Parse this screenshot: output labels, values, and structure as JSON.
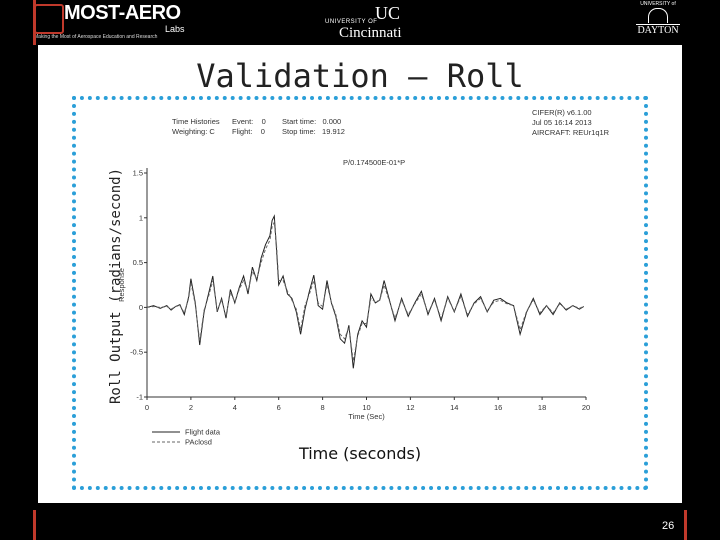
{
  "header": {
    "logo_left_name": "MOST-AERO",
    "logo_left_labs": "Labs",
    "logo_left_tagline": "Making the Most of Aerospace Education and Research",
    "logo_mid_uni": "UNIVERSITY OF",
    "logo_mid_mark": "UC",
    "logo_mid_name": "Cincinnati",
    "logo_right_uni": "UNIVERSITY of",
    "logo_right_name": "DAYTON"
  },
  "slide": {
    "title": "Validation – Roll",
    "y_label": "Roll Output (radians/second)",
    "x_label": "Time (seconds)",
    "page_number": "26"
  },
  "plot_header": {
    "l1": "Time Histories",
    "l2": "Weighting: C",
    "m1": "Event:",
    "m1v": "0",
    "m2": "Flight:",
    "m2v": "0",
    "s1": "Start time:",
    "s1v": "0.000",
    "s2": "Stop time:",
    "s2v": "19.912",
    "r1": "CIFER(R) v6.1.00",
    "r2": "Jul 05 16:14 2013",
    "r3": "AIRCRAFT: REUr1q1R",
    "subtitle": "P/0.174500E-01*P"
  },
  "colors": {
    "accent_red": "#c0392b",
    "frame_blue": "#2b9fd8"
  },
  "chart_data": {
    "type": "line",
    "ylabel": "Response",
    "xlabel": "Time (Sec)",
    "xlim": [
      0,
      20
    ],
    "ylim": [
      -1,
      1.5
    ],
    "x_ticks": [
      "0",
      "2",
      "4",
      "6",
      "8",
      "10",
      "12",
      "14",
      "16",
      "18",
      "20"
    ],
    "y_ticks": [
      "1.5",
      "1",
      "0.5",
      "0",
      "-0.5",
      "-1"
    ],
    "legend_position": "bottom-left",
    "series": [
      {
        "name": "Flight data",
        "style": "solid",
        "x": [
          0,
          0.3,
          0.6,
          0.9,
          1.1,
          1.3,
          1.5,
          1.7,
          1.9,
          2.0,
          2.2,
          2.4,
          2.6,
          2.8,
          3.0,
          3.2,
          3.4,
          3.6,
          3.8,
          4.0,
          4.2,
          4.4,
          4.6,
          4.8,
          5.0,
          5.2,
          5.4,
          5.6,
          5.7,
          5.8,
          5.9,
          6.0,
          6.2,
          6.4,
          6.6,
          6.8,
          7.0,
          7.2,
          7.4,
          7.6,
          7.8,
          8.0,
          8.2,
          8.4,
          8.6,
          8.8,
          9.0,
          9.2,
          9.4,
          9.6,
          9.8,
          10.0,
          10.2,
          10.4,
          10.6,
          10.8,
          11.0,
          11.3,
          11.6,
          11.9,
          12.2,
          12.5,
          12.8,
          13.1,
          13.4,
          13.7,
          14.0,
          14.3,
          14.6,
          14.9,
          15.2,
          15.5,
          15.8,
          16.1,
          16.4,
          16.7,
          17.0,
          17.3,
          17.6,
          17.9,
          18.2,
          18.5,
          18.8,
          19.1,
          19.4,
          19.7,
          19.9
        ],
        "y": [
          0,
          0.02,
          -0.01,
          0.02,
          -0.03,
          0.01,
          0.03,
          -0.08,
          0.12,
          0.32,
          0.05,
          -0.42,
          -0.05,
          0.15,
          0.35,
          -0.05,
          0.1,
          -0.12,
          0.2,
          0.05,
          0.22,
          0.35,
          0.15,
          0.45,
          0.3,
          0.55,
          0.7,
          0.8,
          0.97,
          1.02,
          0.65,
          0.25,
          0.35,
          0.15,
          0.1,
          -0.05,
          -0.3,
          -0.02,
          0.18,
          0.36,
          0.02,
          -0.02,
          0.3,
          0.05,
          -0.1,
          -0.35,
          -0.4,
          -0.2,
          -0.68,
          -0.3,
          -0.15,
          -0.22,
          0.15,
          0.05,
          0.08,
          0.3,
          0.12,
          -0.15,
          0.1,
          -0.1,
          0.05,
          0.18,
          -0.08,
          0.1,
          -0.15,
          0.12,
          -0.05,
          0.15,
          -0.1,
          0.05,
          0.12,
          -0.05,
          0.08,
          0.1,
          0.05,
          0.02,
          -0.3,
          -0.05,
          0.1,
          -0.08,
          0.02,
          -0.08,
          0.05,
          -0.03,
          0.02,
          -0.02,
          0.01
        ]
      },
      {
        "name": "PAclosd",
        "style": "dashed",
        "x": [
          0,
          0.3,
          0.6,
          0.9,
          1.1,
          1.3,
          1.5,
          1.7,
          1.9,
          2.0,
          2.2,
          2.4,
          2.6,
          2.8,
          3.0,
          3.2,
          3.4,
          3.6,
          3.8,
          4.0,
          4.2,
          4.4,
          4.6,
          4.8,
          5.0,
          5.2,
          5.4,
          5.6,
          5.7,
          5.8,
          5.9,
          6.0,
          6.2,
          6.4,
          6.6,
          6.8,
          7.0,
          7.2,
          7.4,
          7.6,
          7.8,
          8.0,
          8.2,
          8.4,
          8.6,
          8.8,
          9.0,
          9.2,
          9.4,
          9.6,
          9.8,
          10.0,
          10.2,
          10.4,
          10.6,
          10.8,
          11.0,
          11.3,
          11.6,
          11.9,
          12.2,
          12.5,
          12.8,
          13.1,
          13.4,
          13.7,
          14.0,
          14.3,
          14.6,
          14.9,
          15.2,
          15.5,
          15.8,
          16.1,
          16.4,
          16.7,
          17.0,
          17.3,
          17.6,
          17.9,
          18.2,
          18.5,
          18.8,
          19.1,
          19.4,
          19.7,
          19.9
        ],
        "y": [
          0,
          0.01,
          0,
          0.01,
          -0.02,
          0.01,
          0.02,
          -0.06,
          0.1,
          0.28,
          0.03,
          -0.38,
          -0.03,
          0.12,
          0.3,
          -0.03,
          0.08,
          -0.1,
          0.17,
          0.06,
          0.2,
          0.3,
          0.18,
          0.4,
          0.32,
          0.5,
          0.65,
          0.75,
          0.9,
          0.95,
          0.7,
          0.3,
          0.3,
          0.18,
          0.08,
          -0.02,
          -0.25,
          0.02,
          0.15,
          0.3,
          0.05,
          0.01,
          0.25,
          0.06,
          -0.08,
          -0.3,
          -0.35,
          -0.22,
          -0.6,
          -0.32,
          -0.18,
          -0.18,
          0.1,
          0.06,
          0.08,
          0.25,
          0.1,
          -0.12,
          0.08,
          -0.08,
          0.04,
          0.15,
          -0.06,
          0.08,
          -0.12,
          0.1,
          -0.04,
          0.12,
          -0.08,
          0.04,
          0.1,
          -0.04,
          0.06,
          0.08,
          0.04,
          0.02,
          -0.25,
          -0.04,
          0.08,
          -0.06,
          0.02,
          -0.06,
          0.04,
          -0.02,
          0.02,
          -0.01,
          0.01
        ]
      }
    ]
  }
}
